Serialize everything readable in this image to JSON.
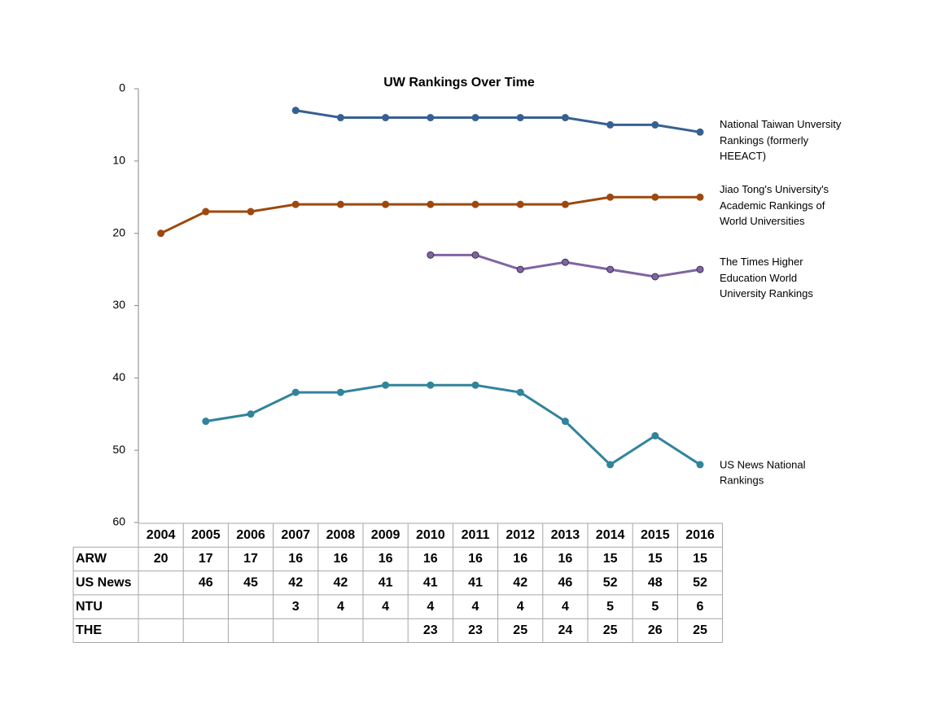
{
  "chart_data": {
    "type": "line",
    "title": "UW Rankings Over Time",
    "categories": [
      "2004",
      "2005",
      "2006",
      "2007",
      "2008",
      "2009",
      "2010",
      "2011",
      "2012",
      "2013",
      "2014",
      "2015",
      "2016"
    ],
    "ylim": [
      0,
      60
    ],
    "y_reversed": true,
    "yticks": [
      0,
      10,
      20,
      30,
      40,
      50,
      60
    ],
    "series": [
      {
        "name": "National Taiwan Unversity Rankings (formerly HEEACT)",
        "color": "#376092",
        "values": [
          null,
          null,
          null,
          3,
          4,
          4,
          4,
          4,
          4,
          4,
          5,
          5,
          6
        ]
      },
      {
        "name": "Jiao Tong's University's Academic Rankings of World Universities",
        "color": "#9e480e",
        "values": [
          20,
          17,
          17,
          16,
          16,
          16,
          16,
          16,
          16,
          16,
          15,
          15,
          15
        ]
      },
      {
        "name": "The Times Higher Education World University Rankings",
        "color": "#8064a2",
        "values": [
          null,
          null,
          null,
          null,
          null,
          null,
          23,
          23,
          25,
          24,
          25,
          26,
          25
        ]
      },
      {
        "name": "US News National Rankings",
        "color": "#31849b",
        "values": [
          null,
          46,
          45,
          42,
          42,
          41,
          41,
          41,
          42,
          46,
          52,
          48,
          52
        ]
      }
    ],
    "table": {
      "row_labels": [
        "ARW",
        "US News",
        "NTU",
        "THE"
      ],
      "row_series": [
        1,
        3,
        0,
        2
      ]
    }
  }
}
